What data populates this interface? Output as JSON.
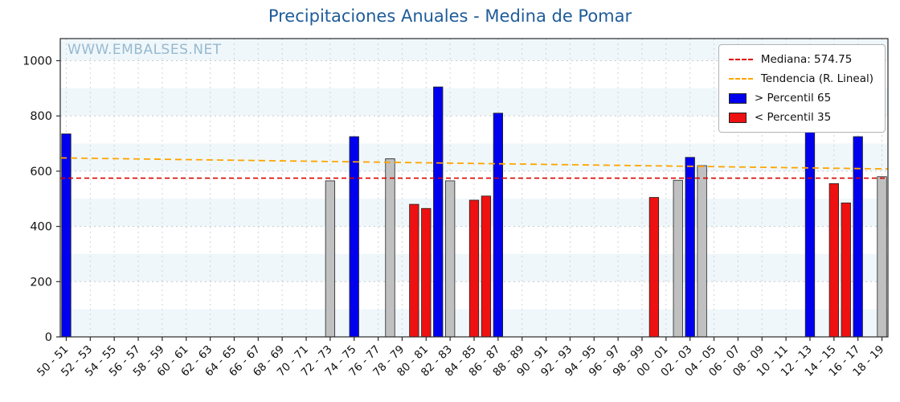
{
  "watermark": "WWW.EMBALSES.NET",
  "legend": {
    "median_label": "Mediana: 574.75",
    "trend_label": "Tendencia (R. Lineal)",
    "p65_label": "> Percentil 65",
    "p35_label": "< Percentil 35"
  },
  "colors": {
    "p65": "#0000ee",
    "p35": "#ee1111",
    "mid": "#c0c0c0",
    "median_line": "#dd0000",
    "trend_line": "#ffa500",
    "title": "#1f5c99",
    "watermark": "#97b9cf",
    "band": "#e7f2f9",
    "grid": "#c9c9c9",
    "frame": "#2a2a2a"
  },
  "chart_data": {
    "type": "bar",
    "title": "Precipitaciones Anuales - Medina de Pomar",
    "xlabel": "",
    "ylabel": "",
    "ylim": [
      0,
      1080
    ],
    "yticks": [
      0,
      200,
      400,
      600,
      800,
      1000
    ],
    "grid": true,
    "legend_position": "upper right",
    "x_first_year": 1950,
    "x_count": 69,
    "xtick_labels": [
      "50 - 51",
      "52 - 53",
      "54 - 55",
      "56 - 57",
      "58 - 59",
      "60 - 61",
      "62 - 63",
      "64 - 65",
      "66 - 67",
      "68 - 69",
      "70 - 71",
      "72 - 73",
      "74 - 75",
      "76 - 77",
      "78 - 79",
      "80 - 81",
      "82 - 83",
      "84 - 85",
      "86 - 87",
      "88 - 89",
      "90 - 91",
      "92 - 93",
      "94 - 95",
      "96 - 97",
      "98 - 99",
      "00 - 01",
      "02 - 03",
      "04 - 05",
      "06 - 07",
      "08 - 09",
      "10 - 11",
      "12 - 13",
      "14 - 15",
      "16 - 17",
      "18 - 19"
    ],
    "median": 574.75,
    "trend": {
      "start": 648,
      "end": 608
    },
    "bars": [
      {
        "season": "1950-51",
        "index": 0,
        "value": 735,
        "class": "p65"
      },
      {
        "season": "1972-73",
        "index": 22,
        "value": 565,
        "class": "mid"
      },
      {
        "season": "1974-75",
        "index": 24,
        "value": 725,
        "class": "p65"
      },
      {
        "season": "1977-78",
        "index": 27,
        "value": 645,
        "class": "mid"
      },
      {
        "season": "1979-80",
        "index": 29,
        "value": 480,
        "class": "p35"
      },
      {
        "season": "1980-81",
        "index": 30,
        "value": 465,
        "class": "p35"
      },
      {
        "season": "1981-82",
        "index": 31,
        "value": 905,
        "class": "p65"
      },
      {
        "season": "1982-83",
        "index": 32,
        "value": 565,
        "class": "mid"
      },
      {
        "season": "1984-85",
        "index": 34,
        "value": 495,
        "class": "p35"
      },
      {
        "season": "1985-86",
        "index": 35,
        "value": 510,
        "class": "p35"
      },
      {
        "season": "1986-87",
        "index": 36,
        "value": 810,
        "class": "p65"
      },
      {
        "season": "1999-00",
        "index": 49,
        "value": 505,
        "class": "p35"
      },
      {
        "season": "2001-02",
        "index": 51,
        "value": 567,
        "class": "mid"
      },
      {
        "season": "2002-03",
        "index": 52,
        "value": 650,
        "class": "p65"
      },
      {
        "season": "2003-04",
        "index": 53,
        "value": 620,
        "class": "mid"
      },
      {
        "season": "2012-13",
        "index": 62,
        "value": 875,
        "class": "p65"
      },
      {
        "season": "2014-15",
        "index": 64,
        "value": 555,
        "class": "p35"
      },
      {
        "season": "2015-16",
        "index": 65,
        "value": 485,
        "class": "p35"
      },
      {
        "season": "2016-17",
        "index": 66,
        "value": 725,
        "class": "p65"
      },
      {
        "season": "2018-19",
        "index": 68,
        "value": 580,
        "class": "mid"
      }
    ]
  }
}
